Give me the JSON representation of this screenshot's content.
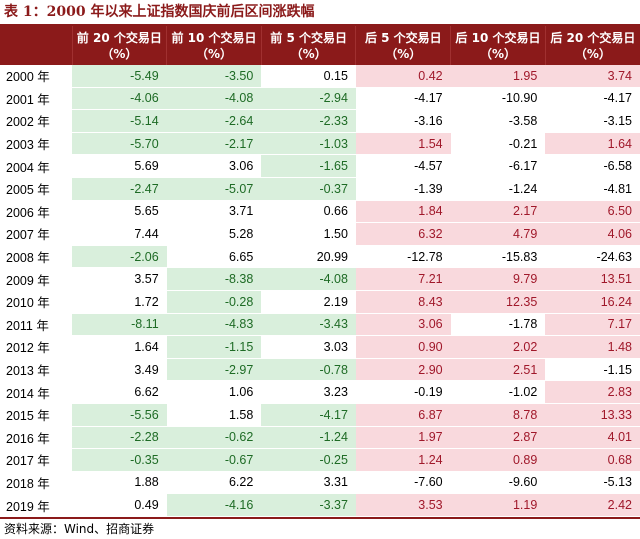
{
  "title": "表 1：2000 年以来上证指数国庆前后区间涨跌幅",
  "headers": [
    "",
    "前 20 个交易日（%）",
    "前 10 个交易日（%）",
    "前 5 个交易日（%）",
    "后 5 个交易日（%）",
    "后 10 个交易日（%）",
    "后 20 个交易日（%）"
  ],
  "rows": [
    {
      "year": "2000 年",
      "values": [
        "-5.49",
        "-3.50",
        "0.15",
        "0.42",
        "1.95",
        "3.74"
      ]
    },
    {
      "year": "2001 年",
      "values": [
        "-4.06",
        "-4.08",
        "-2.94",
        "-4.17",
        "-10.90",
        "-4.17"
      ]
    },
    {
      "year": "2002 年",
      "values": [
        "-5.14",
        "-2.64",
        "-2.33",
        "-3.16",
        "-3.58",
        "-3.15"
      ]
    },
    {
      "year": "2003 年",
      "values": [
        "-5.70",
        "-2.17",
        "-1.03",
        "1.54",
        "-0.21",
        "1.64"
      ]
    },
    {
      "year": "2004 年",
      "values": [
        "5.69",
        "3.06",
        "-1.65",
        "-4.57",
        "-6.17",
        "-6.58"
      ]
    },
    {
      "year": "2005 年",
      "values": [
        "-2.47",
        "-5.07",
        "-0.37",
        "-1.39",
        "-1.24",
        "-4.81"
      ]
    },
    {
      "year": "2006 年",
      "values": [
        "5.65",
        "3.71",
        "0.66",
        "1.84",
        "2.17",
        "6.50"
      ]
    },
    {
      "year": "2007 年",
      "values": [
        "7.44",
        "5.28",
        "1.50",
        "6.32",
        "4.79",
        "4.06"
      ]
    },
    {
      "year": "2008 年",
      "values": [
        "-2.06",
        "6.65",
        "20.99",
        "-12.78",
        "-15.83",
        "-24.63"
      ]
    },
    {
      "year": "2009 年",
      "values": [
        "3.57",
        "-8.38",
        "-4.08",
        "7.21",
        "9.79",
        "13.51"
      ]
    },
    {
      "year": "2010 年",
      "values": [
        "1.72",
        "-0.28",
        "2.19",
        "8.43",
        "12.35",
        "16.24"
      ]
    },
    {
      "year": "2011 年",
      "values": [
        "-8.11",
        "-4.83",
        "-3.43",
        "3.06",
        "-1.78",
        "7.17"
      ]
    },
    {
      "year": "2012 年",
      "values": [
        "1.64",
        "-1.15",
        "3.03",
        "0.90",
        "2.02",
        "1.48"
      ]
    },
    {
      "year": "2013 年",
      "values": [
        "3.49",
        "-2.97",
        "-0.78",
        "2.90",
        "2.51",
        "-1.15"
      ]
    },
    {
      "year": "2014 年",
      "values": [
        "6.62",
        "1.06",
        "3.23",
        "-0.19",
        "-1.02",
        "2.83"
      ]
    },
    {
      "year": "2015 年",
      "values": [
        "-5.56",
        "1.58",
        "-4.17",
        "6.87",
        "8.78",
        "13.33"
      ]
    },
    {
      "year": "2016 年",
      "values": [
        "-2.28",
        "-0.62",
        "-1.24",
        "1.97",
        "2.87",
        "4.01"
      ]
    },
    {
      "year": "2017 年",
      "values": [
        "-0.35",
        "-0.67",
        "-0.25",
        "1.24",
        "0.89",
        "0.68"
      ]
    },
    {
      "year": "2018 年",
      "values": [
        "1.88",
        "6.22",
        "3.31",
        "-7.60",
        "-9.60",
        "-5.13"
      ]
    },
    {
      "year": "2019 年",
      "values": [
        "0.49",
        "-4.16",
        "-3.37",
        "3.53",
        "1.19",
        "2.42"
      ]
    }
  ],
  "source": "资料来源：Wind、招商证券",
  "colors": {
    "header_bg": "#8b1a1a",
    "negative_fill": "#d9efdc",
    "positive_fill": "#f9d9dd"
  }
}
